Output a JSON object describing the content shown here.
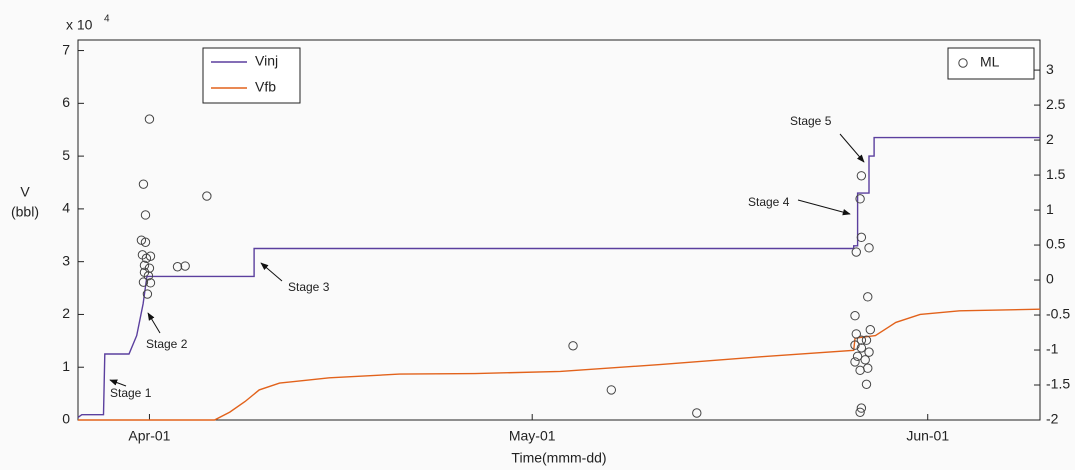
{
  "chart_data": {
    "type": "line",
    "x_label": "Time(mmm-dd)",
    "y_label": [
      "V",
      "(bbl)"
    ],
    "y_multiplier": {
      "base": "x 10",
      "exponent": "4"
    },
    "xlim": [
      -5.6,
      69.8
    ],
    "xticks": [
      {
        "value": 0,
        "label": "Apr-01"
      },
      {
        "value": 30,
        "label": "May-01"
      },
      {
        "value": 61,
        "label": "Jun-01"
      }
    ],
    "ylim": [
      0,
      7.2
    ],
    "yticks": [
      0,
      1,
      2,
      3,
      4,
      5,
      6,
      7
    ],
    "y2lim": [
      -2,
      3.43
    ],
    "y2ticks": [
      -2,
      -1.5,
      -1,
      -0.5,
      0,
      0.5,
      1,
      1.5,
      2,
      2.5,
      3
    ],
    "grid": false,
    "series": [
      {
        "name": "Vinj",
        "color": "#5b3f9e",
        "type": "line",
        "x": [
          -5.6,
          -5.3,
          -3.6,
          -3.5,
          -1.6,
          -1.0,
          -0.5,
          -0.2,
          8.2,
          8.2,
          55.2,
          55.2,
          55.5,
          55.5,
          56.4,
          56.4,
          56.8,
          56.8,
          69.8
        ],
        "values": [
          0.05,
          0.1,
          0.1,
          1.25,
          1.25,
          1.6,
          2.2,
          2.72,
          2.72,
          3.25,
          3.25,
          3.3,
          3.3,
          4.3,
          4.3,
          5.0,
          5.0,
          5.35,
          5.35
        ]
      },
      {
        "name": "Vfb",
        "color": "#e2621b",
        "type": "line",
        "x": [
          -5.6,
          5.1,
          6.3,
          7.5,
          8.6,
          10.2,
          14.1,
          19.6,
          25.5,
          32.2,
          40,
          48,
          55.2,
          55.3,
          56.9,
          58.5,
          60.4,
          63.5,
          69.8
        ],
        "values": [
          0,
          0,
          0.15,
          0.35,
          0.57,
          0.7,
          0.8,
          0.87,
          0.88,
          0.92,
          1.05,
          1.2,
          1.32,
          1.55,
          1.6,
          1.85,
          2.0,
          2.07,
          2.1
        ]
      },
      {
        "name": "ML",
        "color": "#444444",
        "type": "scatter",
        "axis": "y2",
        "x": [
          0,
          -0.47,
          -0.31,
          -0.63,
          -0.31,
          -0.55,
          -0.24,
          0.08,
          -0.39,
          0,
          -0.39,
          -0.08,
          -0.47,
          0.08,
          -0.16,
          2.2,
          2.8,
          4.5,
          33.2,
          36.2,
          42.9,
          55.4,
          55.8,
          55.7,
          55.8,
          56.4,
          56.3,
          55.3,
          56.5,
          55.4,
          55.8,
          56.2,
          55.3,
          55.8,
          56.4,
          55.5,
          56.1,
          55.3,
          56.3,
          55.7,
          56.2,
          55.8,
          55.7
        ],
        "values": [
          2.3,
          1.37,
          0.93,
          0.57,
          0.54,
          0.36,
          0.31,
          0.34,
          0.21,
          0.17,
          0.11,
          0.06,
          -0.03,
          -0.04,
          -0.2,
          0.19,
          0.2,
          1.2,
          -0.94,
          -1.57,
          -1.9,
          0.4,
          0.61,
          1.16,
          1.49,
          0.46,
          -0.24,
          -0.51,
          -0.71,
          -0.77,
          -0.86,
          -0.86,
          -0.93,
          -0.97,
          -1.03,
          -1.09,
          -1.14,
          -1.17,
          -1.26,
          -1.29,
          -1.49,
          -1.83,
          -1.89
        ]
      }
    ],
    "annotations": [
      "Stage 1",
      "Stage 2",
      "Stage 3",
      "Stage 4",
      "Stage 5"
    ]
  }
}
